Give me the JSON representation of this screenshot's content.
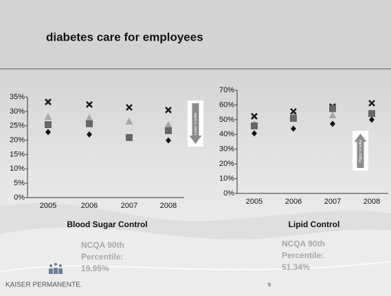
{
  "slide": {
    "title": "diabetes care for employees",
    "logo": "KAISER PERMANENTE.",
    "page_number": "5",
    "notes": [
      {
        "caption": "Blood Sugar Control",
        "benchmark": [
          "NCQA 90th",
          "Percentile:",
          "19.95%"
        ],
        "hint": "Lower is better",
        "direction": "down"
      },
      {
        "caption": "Lipid Control",
        "benchmark": [
          "NCQA 90th",
          "Percentile:",
          "51.34%"
        ],
        "hint": "Higher is better",
        "direction": "up"
      }
    ]
  },
  "chart_data": [
    {
      "type": "scatter",
      "categories": [
        "2005",
        "2006",
        "2007",
        "2008"
      ],
      "ylim": [
        0,
        35
      ],
      "yticks": [
        {
          "value": 0,
          "label": "0%"
        },
        {
          "value": 5,
          "label": "5%"
        },
        {
          "value": 10,
          "label": "10%"
        },
        {
          "value": 15,
          "label": "15%"
        },
        {
          "value": 20,
          "label": "20%"
        },
        {
          "value": 25,
          "label": "25%"
        },
        {
          "value": 30,
          "label": "30%"
        },
        {
          "value": 35,
          "label": "35%"
        }
      ],
      "series": [
        {
          "marker": "x",
          "color": "#1a1a1a",
          "values": [
            33.3,
            32.4,
            31.4,
            30.5
          ]
        },
        {
          "marker": "triangle",
          "color": "#a8a8a8",
          "values": [
            28,
            27.6,
            26.4,
            25.2
          ]
        },
        {
          "marker": "diamond",
          "color": "#111111",
          "values": [
            22.8,
            22,
            21.1,
            19.9
          ]
        },
        {
          "marker": "square",
          "color": "#666666",
          "values": [
            25.4,
            25.7,
            20.9,
            23.3
          ]
        }
      ]
    },
    {
      "type": "scatter",
      "categories": [
        "2005",
        "2006",
        "2007",
        "2008"
      ],
      "ylim": [
        0,
        70
      ],
      "yticks": [
        {
          "value": 0,
          "label": "0%"
        },
        {
          "value": 10,
          "label": "10%"
        },
        {
          "value": 20,
          "label": "20%"
        },
        {
          "value": 30,
          "label": "30%"
        },
        {
          "value": 40,
          "label": "40%"
        },
        {
          "value": 50,
          "label": "50%"
        },
        {
          "value": 60,
          "label": "60%"
        },
        {
          "value": 70,
          "label": "70%"
        }
      ],
      "series": [
        {
          "marker": "x",
          "color": "#1a1a1a",
          "values": [
            52.3,
            55.6,
            58.9,
            61.2
          ]
        },
        {
          "marker": "triangle",
          "color": "#a8a8a8",
          "values": [
            46.7,
            51.9,
            52.8,
            54
          ]
        },
        {
          "marker": "diamond",
          "color": "#111111",
          "values": [
            40.7,
            43.9,
            47.2,
            50
          ]
        },
        {
          "marker": "square",
          "color": "#666666",
          "values": [
            45.8,
            50.9,
            57.5,
            54.2
          ]
        }
      ]
    }
  ]
}
